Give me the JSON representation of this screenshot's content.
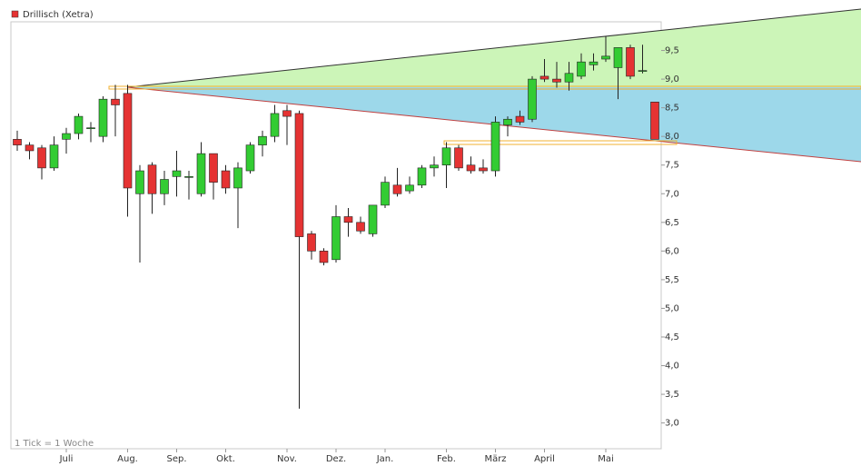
{
  "chart_data": {
    "type": "candlestick",
    "title": "Drillisch (Xetra)",
    "note": "1 Tick = 1 Woche",
    "up_color": "#33cc33",
    "down_color": "#e53333",
    "categories": [
      null,
      null,
      null,
      null,
      "Juli",
      null,
      null,
      null,
      null,
      "Aug.",
      null,
      null,
      null,
      "Sep.",
      null,
      null,
      null,
      "Okt.",
      null,
      null,
      null,
      null,
      "Nov.",
      null,
      null,
      null,
      "Dez.",
      null,
      null,
      null,
      "Jan.",
      null,
      null,
      null,
      null,
      "Feb.",
      null,
      null,
      null,
      "März",
      null,
      null,
      null,
      "April",
      null,
      null,
      null,
      null,
      "Mai",
      null,
      null,
      null,
      null
    ],
    "open": [
      7.95,
      7.85,
      7.8,
      7.45,
      7.95,
      8.05,
      8.15,
      8.0,
      8.65,
      8.75,
      7.0,
      7.5,
      7.0,
      7.3,
      7.3,
      7.0,
      7.7,
      7.4,
      7.1,
      7.4,
      7.85,
      8.0,
      8.45,
      8.4,
      6.3,
      6.0,
      5.85,
      6.6,
      6.5,
      6.3,
      6.8,
      7.15,
      7.05,
      7.15,
      7.45,
      7.5,
      7.8,
      7.5,
      7.45,
      7.4,
      8.2,
      8.35,
      8.3,
      9.05,
      9.0,
      8.95,
      9.05,
      9.25,
      9.35,
      9.2,
      9.55,
      9.15,
      8.6
    ],
    "high": [
      8.1,
      7.9,
      7.85,
      8.0,
      8.15,
      8.4,
      8.25,
      8.7,
      8.9,
      8.9,
      7.5,
      7.55,
      7.4,
      7.75,
      7.4,
      7.9,
      7.7,
      7.5,
      7.55,
      7.9,
      8.1,
      8.55,
      8.55,
      8.45,
      6.35,
      6.05,
      6.8,
      6.75,
      6.6,
      6.8,
      7.3,
      7.45,
      7.3,
      7.5,
      7.65,
      7.9,
      7.85,
      7.65,
      7.6,
      8.35,
      8.35,
      8.45,
      9.05,
      9.35,
      9.3,
      9.3,
      9.45,
      9.45,
      9.75,
      9.55,
      9.6,
      9.6,
      8.6
    ],
    "low": [
      7.75,
      7.6,
      7.25,
      7.4,
      7.7,
      7.95,
      7.9,
      7.9,
      8.0,
      6.6,
      5.8,
      6.65,
      6.8,
      6.95,
      6.9,
      6.95,
      6.9,
      7.0,
      6.4,
      7.35,
      7.65,
      7.9,
      7.85,
      3.25,
      5.85,
      5.75,
      5.8,
      6.25,
      6.3,
      6.25,
      6.75,
      6.95,
      7.0,
      7.1,
      7.3,
      7.1,
      7.4,
      7.35,
      7.35,
      7.3,
      8.0,
      8.2,
      8.25,
      8.95,
      8.85,
      8.8,
      9.0,
      9.15,
      9.3,
      8.65,
      9.0,
      9.1,
      7.95
    ],
    "close": [
      7.85,
      7.75,
      7.45,
      7.85,
      8.05,
      8.35,
      8.15,
      8.65,
      8.55,
      7.1,
      7.4,
      7.0,
      7.25,
      7.4,
      7.3,
      7.7,
      7.2,
      7.1,
      7.45,
      7.85,
      8.0,
      8.4,
      8.35,
      6.25,
      6.0,
      5.8,
      6.6,
      6.5,
      6.35,
      6.8,
      7.2,
      7.0,
      7.15,
      7.45,
      7.5,
      7.8,
      7.45,
      7.4,
      7.4,
      8.25,
      8.3,
      8.25,
      9.0,
      9.0,
      8.95,
      9.1,
      9.3,
      9.3,
      9.4,
      9.55,
      9.05,
      9.15,
      7.95
    ],
    "ylim": [
      2.55,
      10.0
    ],
    "yticks": [
      {
        "value": 3.0,
        "label": "3,0"
      },
      {
        "value": 3.5,
        "label": "3,5"
      },
      {
        "value": 4.0,
        "label": "4,0"
      },
      {
        "value": 4.5,
        "label": "4,5"
      },
      {
        "value": 5.0,
        "label": "5,0"
      },
      {
        "value": 5.5,
        "label": "5,5"
      },
      {
        "value": 6.0,
        "label": "6,0"
      },
      {
        "value": 6.5,
        "label": "6,5"
      },
      {
        "value": 7.0,
        "label": "7,0"
      },
      {
        "value": 7.5,
        "label": "7,5"
      },
      {
        "value": 8.0,
        "label": "8,0"
      },
      {
        "value": 8.5,
        "label": "8,5"
      },
      {
        "value": 9.0,
        "label": "9,0"
      },
      {
        "value": 9.5,
        "label": "9,5"
      }
    ]
  }
}
